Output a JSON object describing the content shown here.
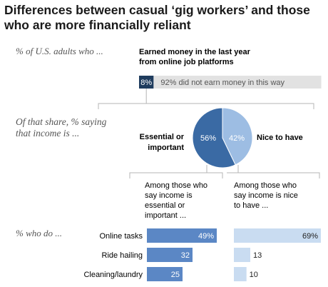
{
  "title": "Differences between casual ‘gig workers’ and those who are more financially reliant",
  "colors": {
    "dark": "#1f3c5e",
    "mid": "#3a6aa4",
    "bar": "#5b87c5",
    "light": "#9dbde3",
    "pale": "#c9dcf1",
    "gray_bar": "#e2e2e2",
    "connector": "#b5b5b5",
    "text": "#222222",
    "muted": "#555555"
  },
  "labels": {
    "share_adults": "% of U.S. adults who ...",
    "earned_header_line1": "Earned money in the last year",
    "earned_header_line2": "from online job platforms",
    "of_that_share_line1": "Of that share, % saying",
    "of_that_share_line2": "that income is ...",
    "essential_line1": "Essential or",
    "essential_line2": "important",
    "nice_to_have": "Nice to have",
    "among_essential": [
      "Among those who",
      "say income is",
      "essential or",
      "important ..."
    ],
    "among_nice": [
      "Among those who",
      "say income is nice",
      "to have ..."
    ],
    "who_do": "% who do ..."
  },
  "chart_data": [
    {
      "type": "bar",
      "categories": [
        "earned money",
        "did not earn money in this way"
      ],
      "values": [
        8,
        92
      ],
      "data_labels": [
        "8%",
        "92% did not earn money in this way"
      ],
      "xlim": [
        0,
        100
      ]
    },
    {
      "type": "pie",
      "labels": [
        "Essential or important",
        "Nice to have"
      ],
      "values": [
        56,
        42
      ],
      "data_labels": [
        "56%",
        "42%"
      ]
    },
    {
      "type": "bar",
      "orientation": "horizontal",
      "categories": [
        "Online tasks",
        "Ride hailing",
        "Cleaning/laundry"
      ],
      "series": [
        {
          "group": "essential or important",
          "values": [
            49,
            32,
            25
          ],
          "data_labels": [
            "49%",
            "32",
            "25"
          ]
        },
        {
          "group": "nice to have",
          "values": [
            69,
            13,
            10
          ],
          "data_labels": [
            "69%",
            "13",
            "10"
          ]
        }
      ],
      "xlim": [
        0,
        100
      ]
    }
  ]
}
